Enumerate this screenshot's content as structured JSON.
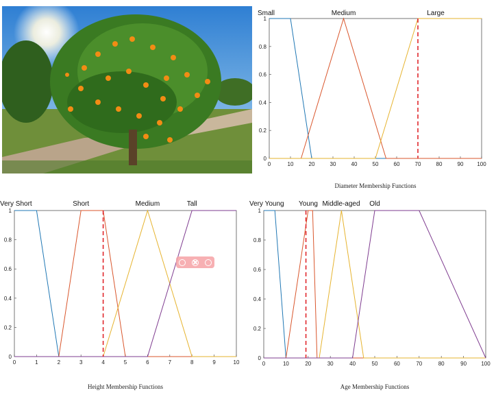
{
  "chart_data": [
    {
      "id": "diameter",
      "type": "line",
      "xlabel": "Diameter Membership Functions",
      "xlim": [
        0,
        100
      ],
      "ylim": [
        0,
        1
      ],
      "xticks": [
        0,
        10,
        20,
        30,
        40,
        50,
        60,
        70,
        80,
        90,
        100
      ],
      "yticks": [
        0,
        0.2,
        0.4,
        0.6,
        0.8,
        1
      ],
      "threshold": 70,
      "series": [
        {
          "name": "Small",
          "color": "#1f77b4",
          "x": [
            0,
            10,
            20,
            100
          ],
          "y": [
            1,
            1,
            0,
            0
          ]
        },
        {
          "name": "Medium",
          "color": "#d9552b",
          "x": [
            0,
            15,
            35,
            55,
            100
          ],
          "y": [
            0,
            0,
            1,
            0,
            0
          ]
        },
        {
          "name": "Large",
          "color": "#e6b32e",
          "x": [
            0,
            50,
            70,
            100
          ],
          "y": [
            0,
            0,
            1,
            1
          ]
        }
      ]
    },
    {
      "id": "height",
      "type": "line",
      "xlabel": "Height Membership Functions",
      "xlim": [
        0,
        10
      ],
      "ylim": [
        0,
        1
      ],
      "xticks": [
        0,
        1,
        2,
        3,
        4,
        5,
        6,
        7,
        8,
        9,
        10
      ],
      "yticks": [
        0,
        0.2,
        0.4,
        0.6,
        0.8,
        1
      ],
      "threshold": 4,
      "series": [
        {
          "name": "Very Short",
          "color": "#1f77b4",
          "x": [
            0,
            1,
            2,
            10
          ],
          "y": [
            1,
            1,
            0,
            0
          ]
        },
        {
          "name": "Short",
          "color": "#d9552b",
          "x": [
            0,
            2,
            3,
            4,
            5,
            10
          ],
          "y": [
            0,
            0,
            1,
            1,
            0,
            0
          ]
        },
        {
          "name": "Medium",
          "color": "#e6b32e",
          "x": [
            0,
            4,
            6,
            8,
            10
          ],
          "y": [
            0,
            0,
            1,
            0,
            0
          ]
        },
        {
          "name": "Tall",
          "color": "#7e3b8f",
          "x": [
            0,
            6,
            8,
            10
          ],
          "y": [
            0,
            0,
            1,
            1
          ]
        }
      ]
    },
    {
      "id": "age",
      "type": "line",
      "xlabel": "Age Membership Functions",
      "xlim": [
        0,
        100
      ],
      "ylim": [
        0,
        1
      ],
      "xticks": [
        0,
        10,
        20,
        30,
        40,
        50,
        60,
        70,
        80,
        90,
        100
      ],
      "yticks": [
        0,
        0.2,
        0.4,
        0.6,
        0.8,
        1
      ],
      "threshold": 19,
      "series": [
        {
          "name": "Very Young",
          "color": "#1f77b4",
          "x": [
            0,
            5,
            10,
            100
          ],
          "y": [
            1,
            1,
            0,
            0
          ]
        },
        {
          "name": "Young",
          "color": "#d9552b",
          "x": [
            0,
            10,
            20,
            22,
            24,
            100
          ],
          "y": [
            0,
            0,
            1,
            1,
            0,
            0
          ]
        },
        {
          "name": "Middle-aged",
          "color": "#e6b32e",
          "x": [
            0,
            25,
            35,
            45,
            100
          ],
          "y": [
            0,
            0,
            1,
            0,
            0
          ]
        },
        {
          "name": "Old",
          "color": "#7e3b8f",
          "x": [
            0,
            40,
            50,
            70,
            100
          ],
          "y": [
            0,
            0,
            1,
            1,
            0
          ]
        }
      ]
    }
  ]
}
